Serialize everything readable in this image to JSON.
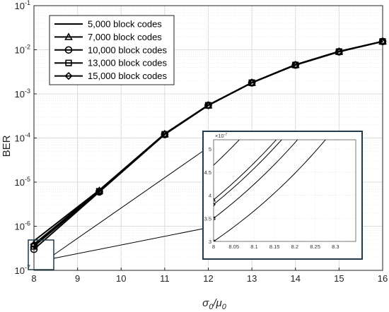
{
  "chart_data": {
    "type": "line",
    "xlabel": "σ0/μ0",
    "ylabel": "BER",
    "xlim": [
      8,
      16
    ],
    "ylim": [
      1e-07,
      0.1
    ],
    "yscale": "log",
    "grid": true,
    "legend_position": "top-left",
    "x_ticks": [
      8,
      9,
      10,
      11,
      12,
      13,
      14,
      15,
      16
    ],
    "y_ticks": [
      {
        "value": 1e-07,
        "base": "10",
        "exp": "-7"
      },
      {
        "value": 1e-06,
        "base": "10",
        "exp": "-6"
      },
      {
        "value": 1e-05,
        "base": "10",
        "exp": "-5"
      },
      {
        "value": 0.0001,
        "base": "10",
        "exp": "-4"
      },
      {
        "value": 0.001,
        "base": "10",
        "exp": "-3"
      },
      {
        "value": 0.01,
        "base": "10",
        "exp": "-2"
      },
      {
        "value": 0.1,
        "base": "10",
        "exp": "-1"
      }
    ],
    "x": [
      8,
      9.5,
      11,
      12,
      13,
      14,
      15,
      16
    ],
    "series": [
      {
        "name": "5,000 block codes",
        "marker": "none",
        "values": [
          4.65e-07,
          6.6e-06,
          0.000125,
          0.00056,
          0.0018,
          0.0046,
          0.0092,
          0.0155
        ]
      },
      {
        "name": "7,000 block codes",
        "marker": "triangle",
        "values": [
          3.9e-07,
          6.4e-06,
          0.000123,
          0.00055,
          0.0018,
          0.00455,
          0.0091,
          0.0155
        ]
      },
      {
        "name": "10,000 block codes",
        "marker": "circle",
        "values": [
          3e-07,
          6e-06,
          0.00012,
          0.00055,
          0.00178,
          0.0045,
          0.009,
          0.0154
        ]
      },
      {
        "name": "13,000 block codes",
        "marker": "square",
        "values": [
          3.5e-07,
          6.2e-06,
          0.000121,
          0.00055,
          0.00179,
          0.00452,
          0.00905,
          0.0154
        ]
      },
      {
        "name": "15,000 block codes",
        "marker": "diamond",
        "values": [
          3.8e-07,
          6.3e-06,
          0.000122,
          0.00055,
          0.0018,
          0.00455,
          0.0091,
          0.0155
        ]
      }
    ],
    "inset": {
      "xlim": [
        8,
        8.35
      ],
      "ylim": [
        3e-07,
        5.2e-07
      ],
      "x_ticks": [
        "8",
        "8.05",
        "8.1",
        "8.15",
        "8.2",
        "8.25",
        "8.3"
      ],
      "x_tick_values": [
        8,
        8.05,
        8.1,
        8.15,
        8.2,
        8.25,
        8.3
      ],
      "y_ticks": [
        "3",
        "3.5",
        "4",
        "4.5",
        "5"
      ],
      "y_tick_values": [
        3e-07,
        3.5e-07,
        4e-07,
        4.5e-07,
        5e-07
      ],
      "multiplier_base": "×10",
      "multiplier_exp": "-7"
    }
  }
}
